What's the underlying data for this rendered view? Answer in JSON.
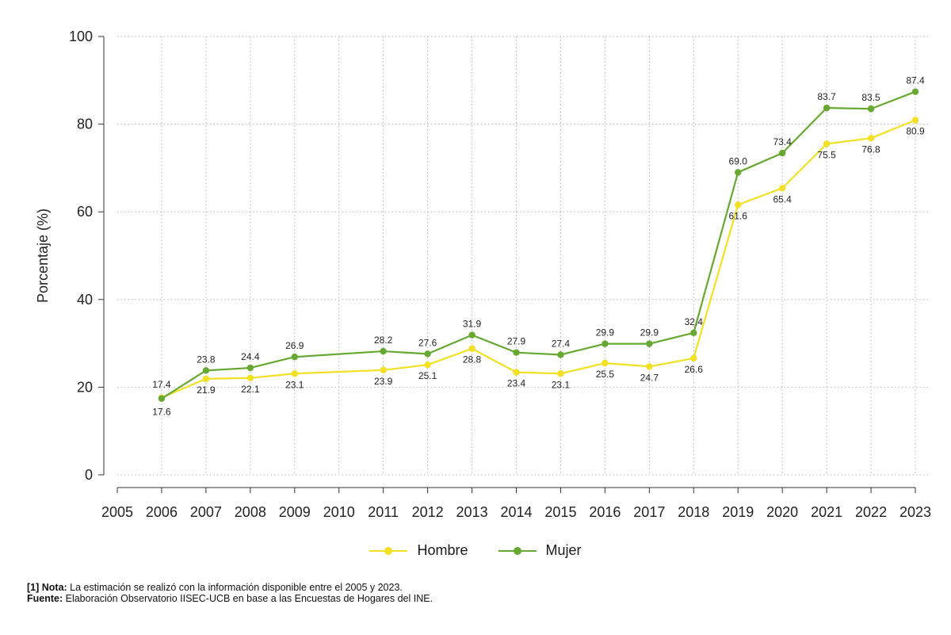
{
  "chart_data": {
    "type": "line",
    "title": "",
    "xlabel": "",
    "ylabel": "Porcentaje (%)",
    "ylim": [
      0,
      100
    ],
    "yticks": [
      0,
      20,
      40,
      60,
      80,
      100
    ],
    "xticks": [
      "2005",
      "2006",
      "2007",
      "2008",
      "2009",
      "2010",
      "2011",
      "2012",
      "2013",
      "2014",
      "2015",
      "2016",
      "2017",
      "2018",
      "2019",
      "2020",
      "2021",
      "2022",
      "2023"
    ],
    "grid": true,
    "legend_position": "bottom",
    "series": [
      {
        "name": "Hombre",
        "color": "#f2e024",
        "x": [
          2006,
          2007,
          2008,
          2009,
          2011,
          2012,
          2013,
          2014,
          2015,
          2016,
          2017,
          2018,
          2019,
          2020,
          2021,
          2022,
          2023
        ],
        "values": [
          17.6,
          21.9,
          22.1,
          23.1,
          23.9,
          25.1,
          28.8,
          23.4,
          23.1,
          25.5,
          24.7,
          26.6,
          61.6,
          65.4,
          75.5,
          76.8,
          80.9
        ]
      },
      {
        "name": "Mujer",
        "color": "#66a832",
        "x": [
          2006,
          2007,
          2008,
          2009,
          2011,
          2012,
          2013,
          2014,
          2015,
          2016,
          2017,
          2018,
          2019,
          2020,
          2021,
          2022,
          2023
        ],
        "values": [
          17.4,
          23.8,
          24.4,
          26.9,
          28.2,
          27.6,
          31.9,
          27.9,
          27.4,
          29.9,
          29.9,
          32.4,
          69.0,
          73.4,
          83.7,
          83.5,
          87.4
        ]
      }
    ]
  },
  "notes": {
    "note_prefix": "[1] Nota:",
    "note_text": " La estimación se realizó con la información disponible entre el 2005 y 2023.",
    "source_prefix": "Fuente:",
    "source_text": " Elaboración Observatorio IISEC-UCB en base a las Encuestas de Hogares del INE."
  }
}
